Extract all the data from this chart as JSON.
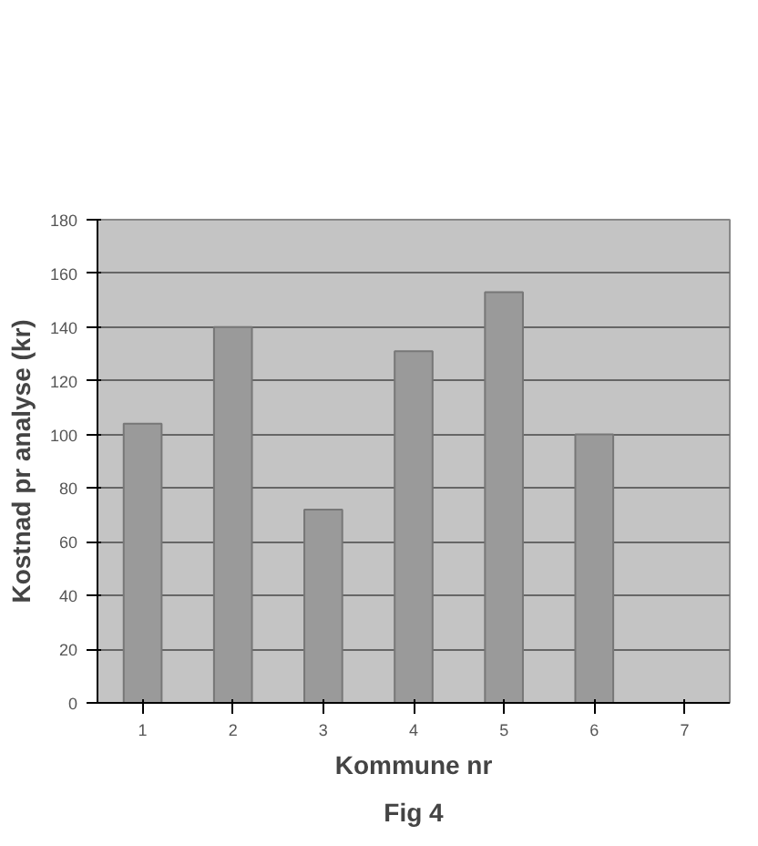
{
  "chart_data": {
    "type": "bar",
    "title": "Fig 4",
    "xlabel": "Kommune nr",
    "ylabel": "Kostnad pr analyse (kr)",
    "categories": [
      "1",
      "2",
      "3",
      "4",
      "5",
      "6",
      "7"
    ],
    "values": [
      104,
      140,
      72,
      131,
      153,
      100,
      null
    ],
    "color": "#9a9a9a",
    "ylim": [
      0,
      180
    ],
    "yticks": [
      0,
      20,
      40,
      60,
      80,
      100,
      120,
      140,
      160,
      180
    ],
    "grid": "y"
  }
}
